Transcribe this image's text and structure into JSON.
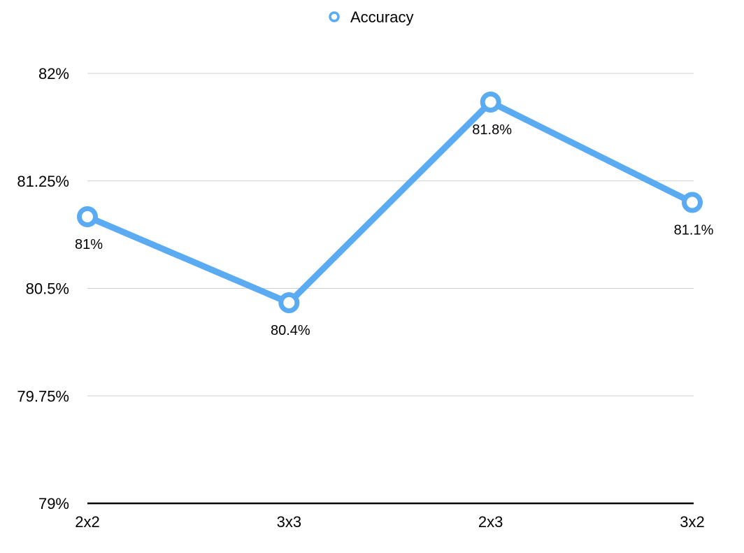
{
  "chart_data": {
    "type": "line",
    "categories": [
      "2x2",
      "3x3",
      "2x3",
      "3x2"
    ],
    "series": [
      {
        "name": "Accuracy",
        "values": [
          81.0,
          80.4,
          81.8,
          81.1
        ],
        "value_labels": [
          "81%",
          "80.4%",
          "81.8%",
          "81.1%"
        ],
        "color": "#5aabf2"
      }
    ],
    "ylim": [
      79,
      82
    ],
    "yticks": [
      79,
      79.75,
      80.5,
      81.25,
      82
    ],
    "ytick_labels": [
      "79%",
      "79.75%",
      "80.5%",
      "81.25%",
      "82%"
    ],
    "grid": true,
    "legend_position": "top-center",
    "title": "",
    "xlabel": "",
    "ylabel": ""
  }
}
